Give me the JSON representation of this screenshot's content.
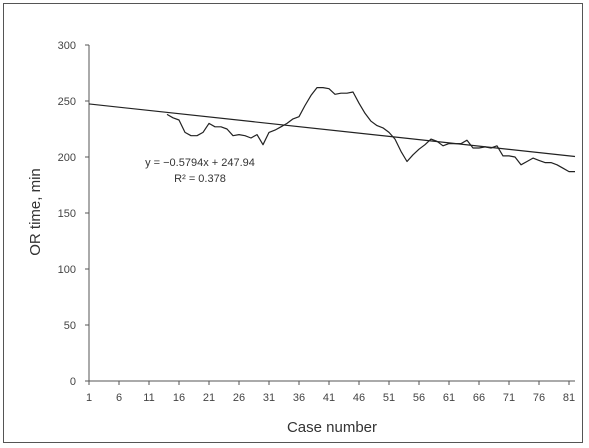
{
  "chart_data": {
    "type": "line",
    "xlabel": "Case number",
    "ylabel": "OR time, min",
    "xlim": [
      1,
      82
    ],
    "ylim": [
      0,
      300
    ],
    "x_ticks": [
      1,
      6,
      11,
      16,
      21,
      26,
      31,
      36,
      41,
      46,
      51,
      56,
      61,
      66,
      71,
      76,
      81
    ],
    "y_ticks": [
      0,
      50,
      100,
      150,
      200,
      250,
      300
    ],
    "grid": false,
    "series": [
      {
        "type": "line",
        "color": "#222222",
        "x": [
          14,
          15,
          16,
          17,
          18,
          19,
          20,
          21,
          22,
          23,
          24,
          25,
          26,
          27,
          28,
          29,
          30,
          31,
          32,
          33,
          34,
          35,
          36,
          37,
          38,
          39,
          40,
          41,
          42,
          43,
          44,
          45,
          46,
          47,
          48,
          49,
          50,
          51,
          52,
          53,
          54,
          55,
          56,
          57,
          58,
          59,
          60,
          61,
          62,
          63,
          64,
          65,
          66,
          67,
          68,
          69,
          70,
          71,
          72,
          73,
          74,
          75,
          76,
          77,
          78,
          79,
          80,
          81,
          82
        ],
        "y": [
          238,
          235,
          233,
          222,
          219,
          219,
          222,
          230,
          227,
          227,
          225,
          219,
          220,
          219,
          217,
          220,
          211,
          222,
          224,
          227,
          230,
          234,
          236,
          246,
          255,
          262,
          262,
          261,
          256,
          257,
          257,
          258,
          248,
          239,
          232,
          228,
          226,
          222,
          216,
          205,
          196,
          202,
          207,
          211,
          216,
          214,
          210,
          212,
          212,
          212,
          215,
          208,
          208,
          209,
          208,
          210,
          201,
          201,
          200,
          193,
          196,
          199,
          197,
          195,
          195,
          193,
          190,
          187,
          187
        ]
      }
    ],
    "trendline": {
      "type": "linear",
      "slope": -0.5794,
      "intercept": 247.94,
      "x_range": [
        1,
        82
      ]
    },
    "annotations": [
      "y = −0.5794x + 247.94",
      "R² = 0.378"
    ]
  }
}
